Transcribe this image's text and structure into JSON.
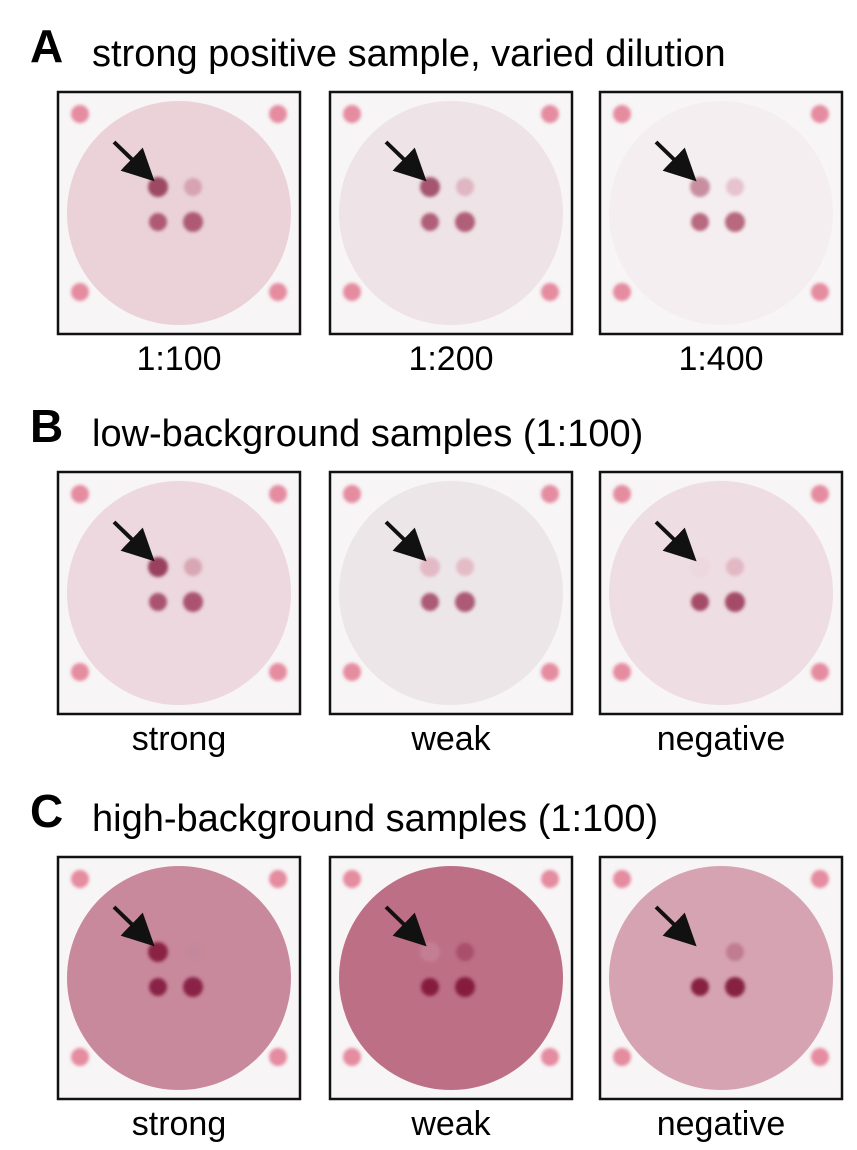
{
  "panels": [
    {
      "letter": "A",
      "title": "strong positive sample, varied dilution",
      "images": [
        {
          "caption": "1:100"
        },
        {
          "caption": "1:200"
        },
        {
          "caption": "1:400"
        }
      ]
    },
    {
      "letter": "B",
      "title": "low-background samples (1:100)",
      "images": [
        {
          "caption": "strong"
        },
        {
          "caption": "weak"
        },
        {
          "caption": "negative"
        }
      ]
    },
    {
      "letter": "C",
      "title": "high-background samples (1:100)",
      "images": [
        {
          "caption": "strong"
        },
        {
          "caption": "weak"
        },
        {
          "caption": "negative"
        }
      ]
    }
  ]
}
